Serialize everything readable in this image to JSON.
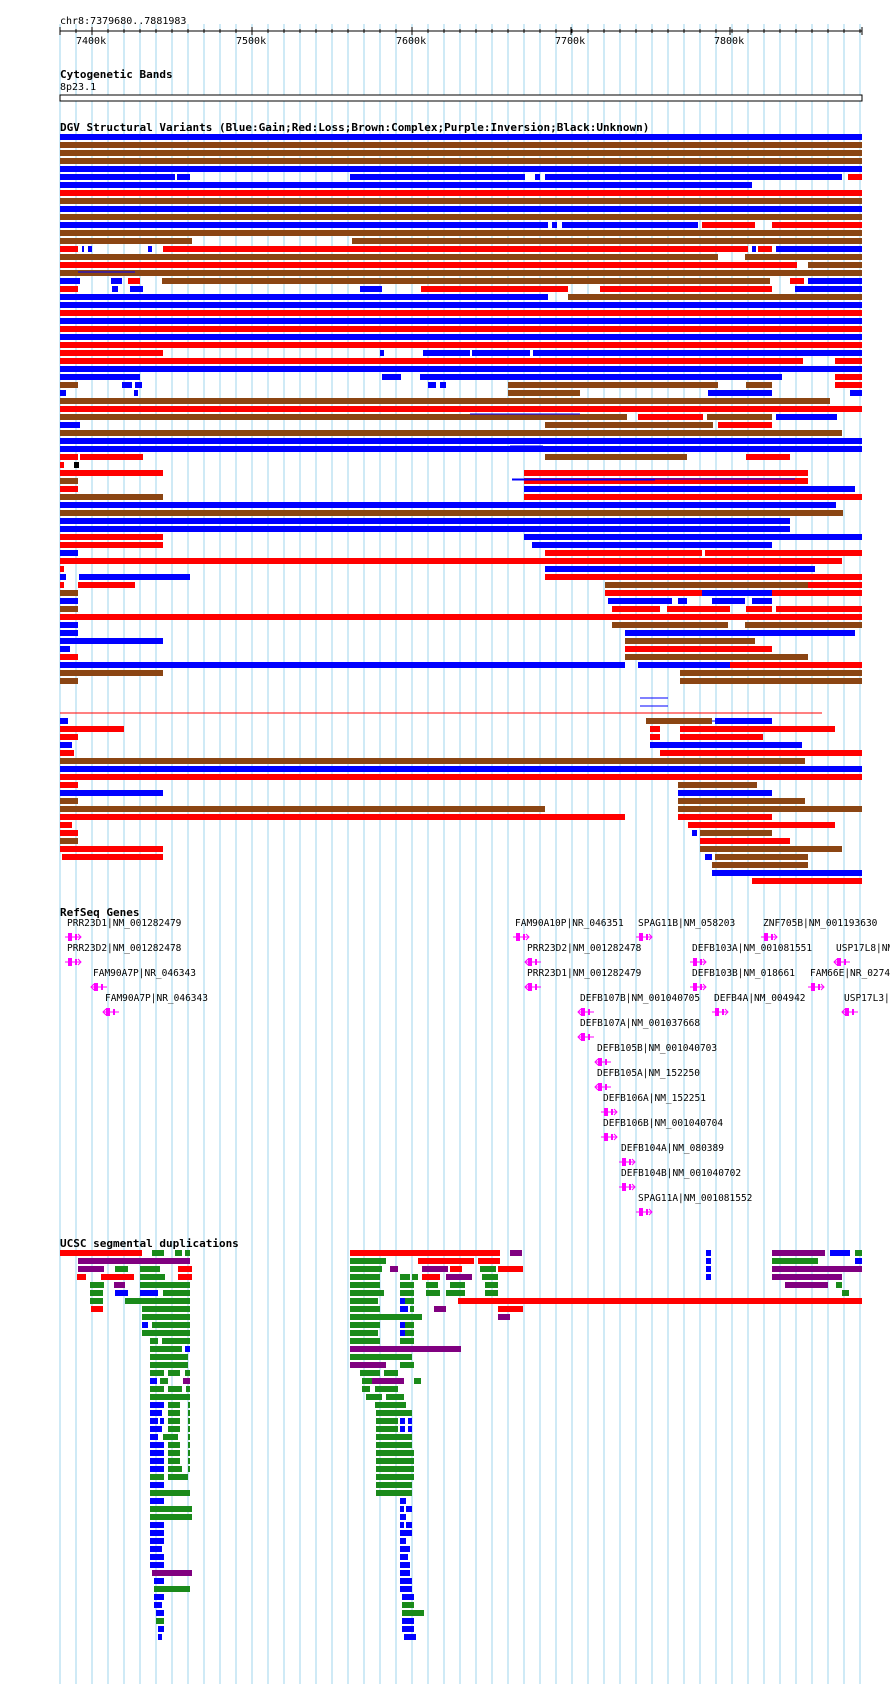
{
  "position_label": "chr8:7379680..7881983",
  "ruler": {
    "start": 7379680,
    "end": 7881983,
    "ticks": [
      "7400k",
      "7500k",
      "7600k",
      "7700k",
      "7800k"
    ]
  },
  "tracks": {
    "cytoband": {
      "title": "Cytogenetic Bands",
      "band": "8p23.1"
    },
    "dgv": {
      "title": "DGV Structural Variants (Blue:Gain;Red:Loss;Brown:Complex;Purple:Inversion;Black:Unknown)"
    },
    "refseq": {
      "title": "RefSeq Genes"
    },
    "segdup": {
      "title": "UCSC segmental duplications"
    }
  },
  "colors": {
    "grid": "#9fd6ee",
    "gain": "#0000ff",
    "loss": "#ff0000",
    "complex": "#8b4513",
    "inversion": "#800080",
    "unknown": "#000000",
    "gene": "#ff00ff",
    "segdup_green": "#1a8a1a",
    "segdup_red": "#ff0000",
    "segdup_purple": "#800080",
    "segdup_blue": "#0000ff"
  },
  "genes": [
    {
      "label": "PRR23D1|NM_001282479",
      "strand": "+"
    },
    {
      "label": "PRR23D2|NM_001282478",
      "strand": "+"
    },
    {
      "label": "FAM90A7P|NR_046343",
      "strand": "-"
    },
    {
      "label": "FAM90A7P|NR_046343",
      "strand": "-"
    },
    {
      "label": "FAM90A10P|NR_046351",
      "strand": "+"
    },
    {
      "label": "PRR23D2|NM_001282478",
      "strand": "-"
    },
    {
      "label": "PRR23D1|NM_001282479",
      "strand": "-"
    },
    {
      "label": "DEFB107B|NM_001040705",
      "strand": "-"
    },
    {
      "label": "DEFB107A|NM_001037668",
      "strand": "-"
    },
    {
      "label": "DEFB105B|NM_001040703",
      "strand": "-"
    },
    {
      "label": "DEFB105A|NM_152250",
      "strand": "-"
    },
    {
      "label": "DEFB106A|NM_152251",
      "strand": "+"
    },
    {
      "label": "DEFB106B|NM_001040704",
      "strand": "+"
    },
    {
      "label": "DEFB104A|NM_080389",
      "strand": "+"
    },
    {
      "label": "DEFB104B|NM_001040702",
      "strand": "+"
    },
    {
      "label": "SPAG11B|NM_058203",
      "strand": "+"
    },
    {
      "label": "SPAG11A|NM_001081552",
      "strand": "+"
    },
    {
      "label": "DEFB103A|NM_001081551",
      "strand": "+"
    },
    {
      "label": "DEFB103B|NM_018661",
      "strand": "+"
    },
    {
      "label": "DEFB4A|NM_004942",
      "strand": "+"
    },
    {
      "label": "ZNF705B|NM_001193630",
      "strand": "+"
    },
    {
      "label": "USP17L8|NM",
      "strand": "-"
    },
    {
      "label": "FAM66E|NR_0274",
      "strand": "+"
    },
    {
      "label": "USP17L3|",
      "strand": "-"
    }
  ]
}
